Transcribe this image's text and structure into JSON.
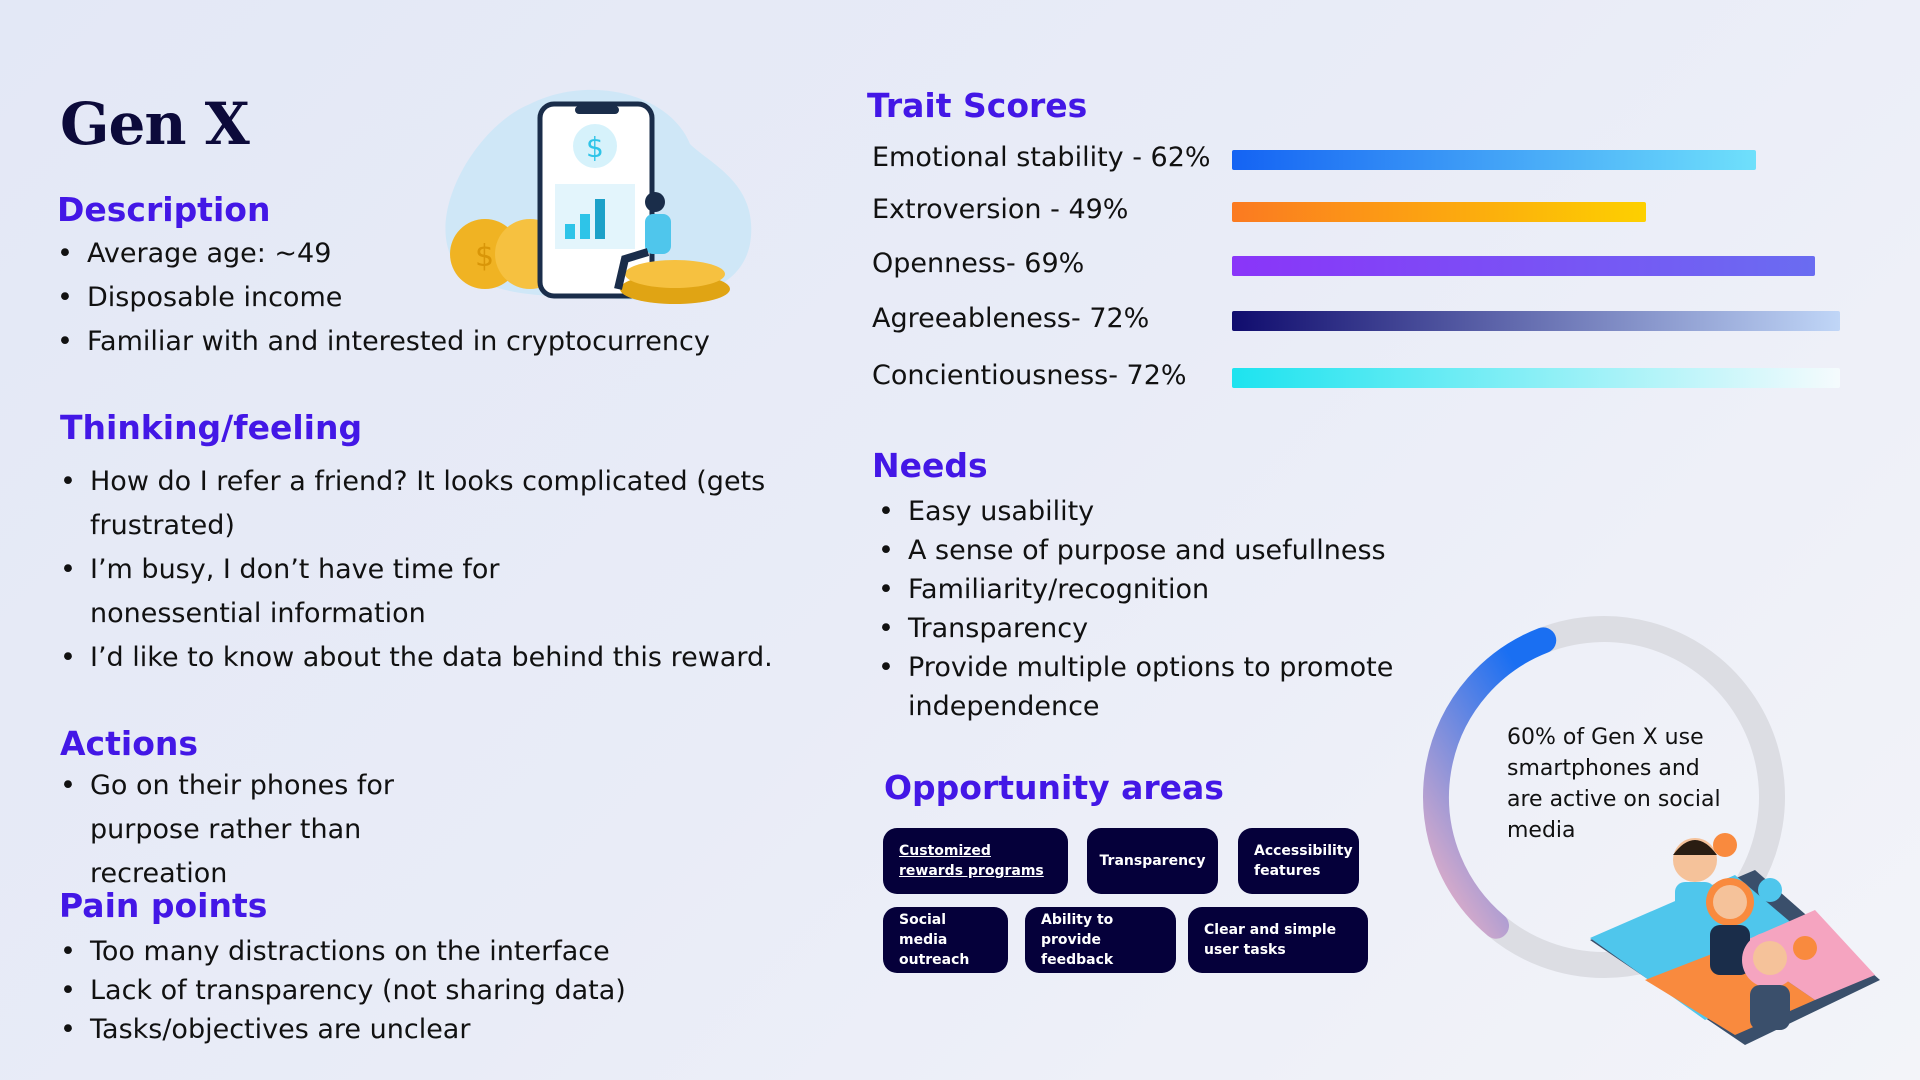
{
  "title": "Gen X",
  "description": {
    "heading": "Description",
    "items": [
      "Average age: ~49",
      "Disposable income",
      "Familiar with and interested in cryptocurrency"
    ]
  },
  "thinking": {
    "heading": "Thinking/feeling",
    "items": [
      "How do I refer a friend? It looks complicated (gets frustrated)",
      "I’m busy, I don’t have time for nonessential information",
      "I’d like to know about the data behind this reward."
    ]
  },
  "actions": {
    "heading": "Actions",
    "items": [
      "Go on their phones for purpose rather than recreation"
    ]
  },
  "pain_points": {
    "heading": "Pain points",
    "items": [
      "Too many distractions on the interface",
      "Lack of transparency (not sharing data)",
      "Tasks/objectives are unclear"
    ]
  },
  "traits": {
    "heading": "Trait Scores",
    "items": [
      {
        "label": "Emotional stability - 62%",
        "value": 62,
        "colors": [
          "#1463f3",
          "#6fe0fb"
        ]
      },
      {
        "label": "Extroversion - 49%",
        "value": 49,
        "colors": [
          "#fb7a21",
          "#fdd000"
        ]
      },
      {
        "label": "Openness- 69%",
        "value": 69,
        "colors": [
          "#8a35f9",
          "#6a6cf1"
        ]
      },
      {
        "label": "Agreeableness- 72%",
        "value": 72,
        "colors": [
          "#100c6e",
          "#c0d6f7"
        ]
      },
      {
        "label": "Concientiousness- 72%",
        "value": 72,
        "colors": [
          "#1de3ef",
          "#f5fbfd"
        ]
      }
    ]
  },
  "needs": {
    "heading": "Needs",
    "items": [
      "Easy usability",
      "A sense of purpose and usefullness",
      "Familiarity/recognition",
      "Transparency",
      "Provide multiple options to promote independence"
    ]
  },
  "opportunity": {
    "heading": "Opportunity areas",
    "chips": [
      "Customized rewards programs",
      "Transparency",
      "Accessibility features",
      "Social media outreach",
      "Ability to provide feedback",
      "Clear and simple user tasks"
    ]
  },
  "stat": {
    "text": "60% of Gen X use smartphones and are active on social media",
    "value": 60,
    "colors": {
      "start": "#f2b3c4",
      "end": "#1a6ff2",
      "track": "#dcdde3"
    }
  }
}
